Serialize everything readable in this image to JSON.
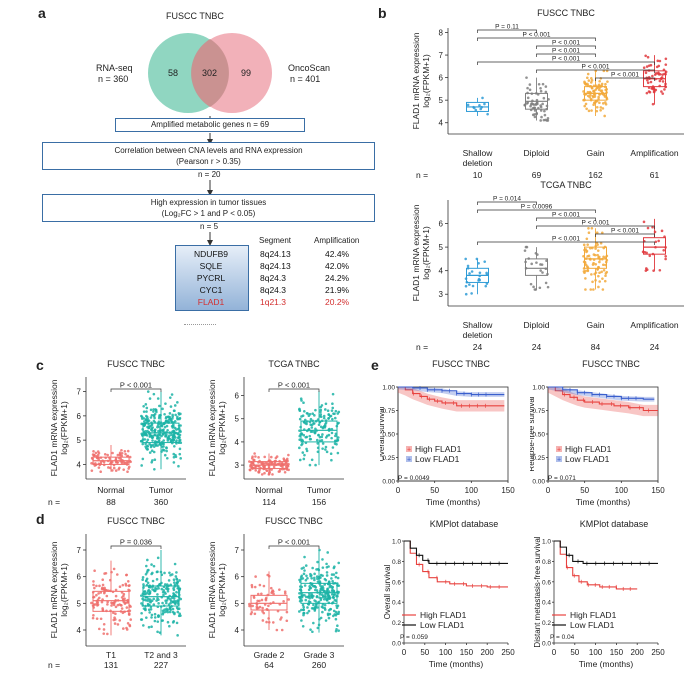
{
  "panel_labels": [
    "a",
    "b",
    "c",
    "d",
    "e"
  ],
  "venn": {
    "title": "FUSCC TNBC",
    "left_label": "RNA-seq",
    "left_n": "n = 360",
    "right_label": "OncoScan",
    "right_n": "n = 401",
    "left_only": "58",
    "overlap": "302",
    "right_only": "99",
    "colors": {
      "left": "#7ccfb6",
      "right": "#f0a3ad"
    }
  },
  "flow": {
    "box1": "Amplified metabolic genes n = 69",
    "box2_l1": "Correlation between CNA levels and RNA expression",
    "box2_l2": "(Pearson r > 0.35)",
    "n2": "n = 20",
    "box3_l1": "High expression in tumor tissues",
    "box3_l2": "(Log₂FC > 1 and P < 0.05)",
    "n3": "n = 5",
    "seg_header": "Segment",
    "amp_header": "Amplification",
    "genes": [
      {
        "name": "NDUFB9",
        "seg": "8q24.13",
        "amp": "42.4%"
      },
      {
        "name": "SQLE",
        "seg": "8q24.13",
        "amp": "42.0%"
      },
      {
        "name": "PYCRL",
        "seg": "8q24.3",
        "amp": "24.2%"
      },
      {
        "name": "CYC1",
        "seg": "8q24.3",
        "amp": "21.9%"
      },
      {
        "name": "FLAD1",
        "seg": "1q21.3",
        "amp": "20.2%"
      }
    ],
    "highlight_color": "#d32f2f"
  },
  "chart_data": [
    {
      "id": "b_fuscc",
      "type": "box",
      "title": "FUSCC TNBC",
      "ylabel": "FLAD1 mRNA expression log₂(FPKM+1)",
      "ylim": [
        3.5,
        8.2
      ],
      "yticks": [
        "4",
        "5",
        "6",
        "7",
        "8"
      ],
      "ytick_values": [
        4,
        5,
        6,
        7,
        8
      ],
      "categories": [
        "Shallow deletion",
        "Diploid",
        "Gain",
        "Amplification"
      ],
      "n_label": "n =",
      "n": [
        "10",
        "69",
        "162",
        "61"
      ],
      "colors": [
        "#2e9bd6",
        "#7f7f7f",
        "#f2a93b",
        "#e0393e"
      ],
      "boxes": [
        {
          "q1": 4.5,
          "median": 4.7,
          "q3": 4.9,
          "min": 4.3,
          "max": 5.1
        },
        {
          "q1": 4.6,
          "median": 4.95,
          "q3": 5.3,
          "min": 4.1,
          "max": 6.0
        },
        {
          "q1": 5.0,
          "median": 5.3,
          "q3": 5.6,
          "min": 4.3,
          "max": 6.3
        },
        {
          "q1": 5.6,
          "median": 5.95,
          "q3": 6.3,
          "min": 4.8,
          "max": 7.0
        }
      ],
      "comparisons": [
        {
          "from": 0,
          "to": 1,
          "p": "P = 0.11"
        },
        {
          "from": 0,
          "to": 2,
          "p": "P < 0.001"
        },
        {
          "from": 1,
          "to": 2,
          "p": "P < 0.001"
        },
        {
          "from": 1,
          "to": 2,
          "p": "P < 0.001"
        },
        {
          "from": 0,
          "to": 3,
          "p": "P < 0.001"
        },
        {
          "from": 1,
          "to": 3,
          "p": "P < 0.001"
        },
        {
          "from": 2,
          "to": 3,
          "p": "P < 0.001"
        }
      ]
    },
    {
      "id": "b_tcga",
      "type": "box",
      "title": "TCGA TNBC",
      "ylabel": "FLAD1 mRNA expression log₂(FPKM+1)",
      "ylim": [
        2.5,
        7.0
      ],
      "yticks": [
        "3",
        "4",
        "5",
        "6"
      ],
      "ytick_values": [
        3,
        4,
        5,
        6
      ],
      "categories": [
        "Shallow deletion",
        "Diploid",
        "Gain",
        "Amplification"
      ],
      "n_label": "n =",
      "n": [
        "24",
        "24",
        "84",
        "24"
      ],
      "colors": [
        "#2e9bd6",
        "#7f7f7f",
        "#f2a93b",
        "#e0393e"
      ],
      "boxes": [
        {
          "q1": 3.5,
          "median": 3.8,
          "q3": 4.1,
          "min": 3.0,
          "max": 4.5
        },
        {
          "q1": 3.8,
          "median": 4.1,
          "q3": 4.5,
          "min": 3.2,
          "max": 5.0
        },
        {
          "q1": 4.1,
          "median": 4.5,
          "q3": 5.0,
          "min": 3.2,
          "max": 5.8
        },
        {
          "q1": 4.7,
          "median": 5.0,
          "q3": 5.4,
          "min": 4.0,
          "max": 6.2
        }
      ],
      "comparisons": [
        {
          "from": 0,
          "to": 1,
          "p": "P = 0.014"
        },
        {
          "from": 0,
          "to": 2,
          "p": "P = 0.0096"
        },
        {
          "from": 1,
          "to": 2,
          "p": "P < 0.001"
        },
        {
          "from": 1,
          "to": 3,
          "p": "P < 0.001"
        },
        {
          "from": 2,
          "to": 3,
          "p": "P < 0.001"
        },
        {
          "from": 0,
          "to": 3,
          "p": "P < 0.001"
        }
      ]
    },
    {
      "id": "c_fuscc",
      "type": "box",
      "title": "FUSCC TNBC",
      "ylabel": "FLAD1 mRNA expression log₂(FPKM+1)",
      "ylim": [
        3.4,
        7.6
      ],
      "yticks": [
        "4",
        "5",
        "6",
        "7"
      ],
      "ytick_values": [
        4,
        5,
        6,
        7
      ],
      "categories": [
        "Normal",
        "Tumor"
      ],
      "n_label": "n =",
      "n": [
        "88",
        "360"
      ],
      "colors": [
        "#ef6f6c",
        "#1bb3a6"
      ],
      "boxes": [
        {
          "q1": 4.0,
          "median": 4.15,
          "q3": 4.3,
          "min": 3.7,
          "max": 4.8
        },
        {
          "q1": 4.9,
          "median": 5.3,
          "q3": 5.7,
          "min": 3.8,
          "max": 7.0
        }
      ],
      "comparisons": [
        {
          "from": 0,
          "to": 1,
          "p": "P < 0.001"
        }
      ]
    },
    {
      "id": "c_tcga",
      "type": "box",
      "title": "TCGA TNBC",
      "ylabel": "FLAD1 mRNA expression log₂(FPKM+1)",
      "ylim": [
        2.4,
        6.8
      ],
      "yticks": [
        "3",
        "4",
        "5",
        "6"
      ],
      "ytick_values": [
        3,
        4,
        5,
        6
      ],
      "categories": [
        "Normal",
        "Tumor"
      ],
      "n_label": "",
      "n": [
        "114",
        "156"
      ],
      "colors": [
        "#ef6f6c",
        "#1bb3a6"
      ],
      "boxes": [
        {
          "q1": 2.85,
          "median": 3.0,
          "q3": 3.15,
          "min": 2.6,
          "max": 3.5
        },
        {
          "q1": 4.0,
          "median": 4.5,
          "q3": 4.9,
          "min": 3.0,
          "max": 6.2
        }
      ],
      "comparisons": [
        {
          "from": 0,
          "to": 1,
          "p": "P < 0.001"
        }
      ]
    },
    {
      "id": "d_stage",
      "type": "box",
      "title": "FUSCC TNBC",
      "ylabel": "FLAD1 mRNA expression log₂(FPKM+1)",
      "ylim": [
        3.4,
        7.6
      ],
      "yticks": [
        "4",
        "5",
        "6",
        "7"
      ],
      "ytick_values": [
        4,
        5,
        6,
        7
      ],
      "categories": [
        "T1",
        "T2 and 3"
      ],
      "n_label": "n =",
      "n": [
        "131",
        "227"
      ],
      "colors": [
        "#ef6f6c",
        "#1bb3a6"
      ],
      "boxes": [
        {
          "q1": 4.7,
          "median": 5.1,
          "q3": 5.45,
          "min": 3.8,
          "max": 6.6
        },
        {
          "q1": 4.9,
          "median": 5.25,
          "q3": 5.65,
          "min": 3.8,
          "max": 7.0
        }
      ],
      "comparisons": [
        {
          "from": 0,
          "to": 1,
          "p": "P = 0.036"
        }
      ]
    },
    {
      "id": "d_grade",
      "type": "box",
      "title": "FUSCC TNBC",
      "ylabel": "FLAD1 mRNA expression log₂(FPKM+1)",
      "ylim": [
        3.4,
        7.6
      ],
      "yticks": [
        "4",
        "5",
        "6",
        "7"
      ],
      "ytick_values": [
        4,
        5,
        6,
        7
      ],
      "categories": [
        "Grade 2",
        "Grade 3"
      ],
      "n_label": "",
      "n": [
        "64",
        "260"
      ],
      "colors": [
        "#ef6f6c",
        "#1bb3a6"
      ],
      "boxes": [
        {
          "q1": 4.75,
          "median": 5.0,
          "q3": 5.3,
          "min": 4.0,
          "max": 6.2
        },
        {
          "q1": 5.0,
          "median": 5.4,
          "q3": 5.75,
          "min": 3.9,
          "max": 7.0
        }
      ],
      "comparisons": [
        {
          "from": 0,
          "to": 1,
          "p": "P < 0.001"
        }
      ]
    },
    {
      "id": "e_os",
      "type": "km",
      "title": "FUSCC TNBC",
      "ylabel": "Overall survival",
      "xlabel": "Time (months)",
      "xlim": [
        0,
        150
      ],
      "xticks": [
        "0",
        "50",
        "100",
        "150"
      ],
      "xtick_values": [
        0,
        50,
        100,
        150
      ],
      "ylim": [
        0,
        1.0
      ],
      "yticks": [
        "0.00",
        "0.25",
        "0.50",
        "0.75",
        "1.00"
      ],
      "ytick_values": [
        0,
        0.25,
        0.5,
        0.75,
        1.0
      ],
      "p": "P = 0.0049",
      "ci": true,
      "series": [
        {
          "name": "High FLAD1",
          "color": "#e8423f",
          "t": [
            0,
            10,
            20,
            30,
            40,
            50,
            60,
            80,
            100,
            130
          ],
          "s": [
            1.0,
            0.97,
            0.93,
            0.9,
            0.87,
            0.85,
            0.83,
            0.8,
            0.8,
            0.8
          ]
        },
        {
          "name": "Low FLAD1",
          "color": "#3a5fcd",
          "t": [
            0,
            20,
            40,
            60,
            80,
            100,
            130
          ],
          "s": [
            1.0,
            0.99,
            0.97,
            0.96,
            0.93,
            0.92,
            0.92
          ]
        }
      ]
    },
    {
      "id": "e_rfs",
      "type": "km",
      "title": "FUSCC TNBC",
      "ylabel": "Relapse-free survival",
      "xlabel": "Time (months)",
      "xlim": [
        0,
        150
      ],
      "xticks": [
        "0",
        "50",
        "100",
        "150"
      ],
      "xtick_values": [
        0,
        50,
        100,
        150
      ],
      "ylim": [
        0,
        1.0
      ],
      "yticks": [
        "0.00",
        "0.25",
        "0.50",
        "0.75",
        "1.00"
      ],
      "ytick_values": [
        0,
        0.25,
        0.5,
        0.75,
        1.0
      ],
      "p": "P = 0.071",
      "ci": true,
      "series": [
        {
          "name": "High FLAD1",
          "color": "#e8423f",
          "t": [
            0,
            10,
            20,
            30,
            40,
            50,
            70,
            90,
            110,
            130,
            150
          ],
          "s": [
            1.0,
            0.96,
            0.92,
            0.89,
            0.86,
            0.84,
            0.82,
            0.8,
            0.78,
            0.75,
            0.75
          ]
        },
        {
          "name": "Low FLAD1",
          "color": "#3a5fcd",
          "t": [
            0,
            20,
            40,
            60,
            80,
            100,
            130
          ],
          "s": [
            1.0,
            0.97,
            0.94,
            0.92,
            0.9,
            0.88,
            0.87
          ]
        }
      ]
    },
    {
      "id": "e_kmp_os",
      "type": "km",
      "title": "KMPlot database",
      "ylabel": "Overall survival",
      "xlabel": "Time (months)",
      "xlim": [
        0,
        250
      ],
      "xticks": [
        "0",
        "50",
        "100",
        "150",
        "200",
        "250"
      ],
      "xtick_values": [
        0,
        50,
        100,
        150,
        200,
        250
      ],
      "ylim": [
        0,
        1.0
      ],
      "yticks": [
        "0.0",
        "0.2",
        "0.4",
        "0.6",
        "0.8",
        "1.0"
      ],
      "ytick_values": [
        0,
        0.2,
        0.4,
        0.6,
        0.8,
        1.0
      ],
      "p": "P = 0.059",
      "ci": false,
      "series": [
        {
          "name": "High FLAD1",
          "color": "#e8423f",
          "t": [
            0,
            15,
            30,
            45,
            60,
            80,
            110,
            150,
            200,
            250
          ],
          "s": [
            1.0,
            0.88,
            0.77,
            0.7,
            0.64,
            0.6,
            0.58,
            0.56,
            0.55,
            0.55
          ]
        },
        {
          "name": "Low FLAD1",
          "color": "#111111",
          "t": [
            0,
            15,
            30,
            45,
            60,
            100,
            200,
            250
          ],
          "s": [
            1.0,
            0.93,
            0.86,
            0.81,
            0.78,
            0.78,
            0.78,
            0.78
          ]
        }
      ]
    },
    {
      "id": "e_kmp_dmfs",
      "type": "km",
      "title": "KMPlot database",
      "ylabel": "Distant metastasis-free survival",
      "xlabel": "Time (months)",
      "xlim": [
        0,
        250
      ],
      "xticks": [
        "0",
        "50",
        "100",
        "150",
        "200",
        "250"
      ],
      "xtick_values": [
        0,
        50,
        100,
        150,
        200,
        250
      ],
      "ylim": [
        0,
        1.0
      ],
      "yticks": [
        "0.0",
        "0.2",
        "0.4",
        "0.6",
        "0.8",
        "1.0"
      ],
      "ytick_values": [
        0,
        0.2,
        0.4,
        0.6,
        0.8,
        1.0
      ],
      "p": "P = 0.04",
      "ci": false,
      "series": [
        {
          "name": "High FLAD1",
          "color": "#e8423f",
          "t": [
            0,
            15,
            30,
            45,
            60,
            80,
            110,
            150,
            200
          ],
          "s": [
            1.0,
            0.87,
            0.74,
            0.66,
            0.6,
            0.57,
            0.55,
            0.53,
            0.53
          ]
        },
        {
          "name": "Low FLAD1",
          "color": "#111111",
          "t": [
            0,
            15,
            30,
            45,
            70,
            120,
            200,
            250
          ],
          "s": [
            1.0,
            0.94,
            0.86,
            0.8,
            0.78,
            0.78,
            0.78,
            0.78
          ]
        }
      ]
    }
  ]
}
